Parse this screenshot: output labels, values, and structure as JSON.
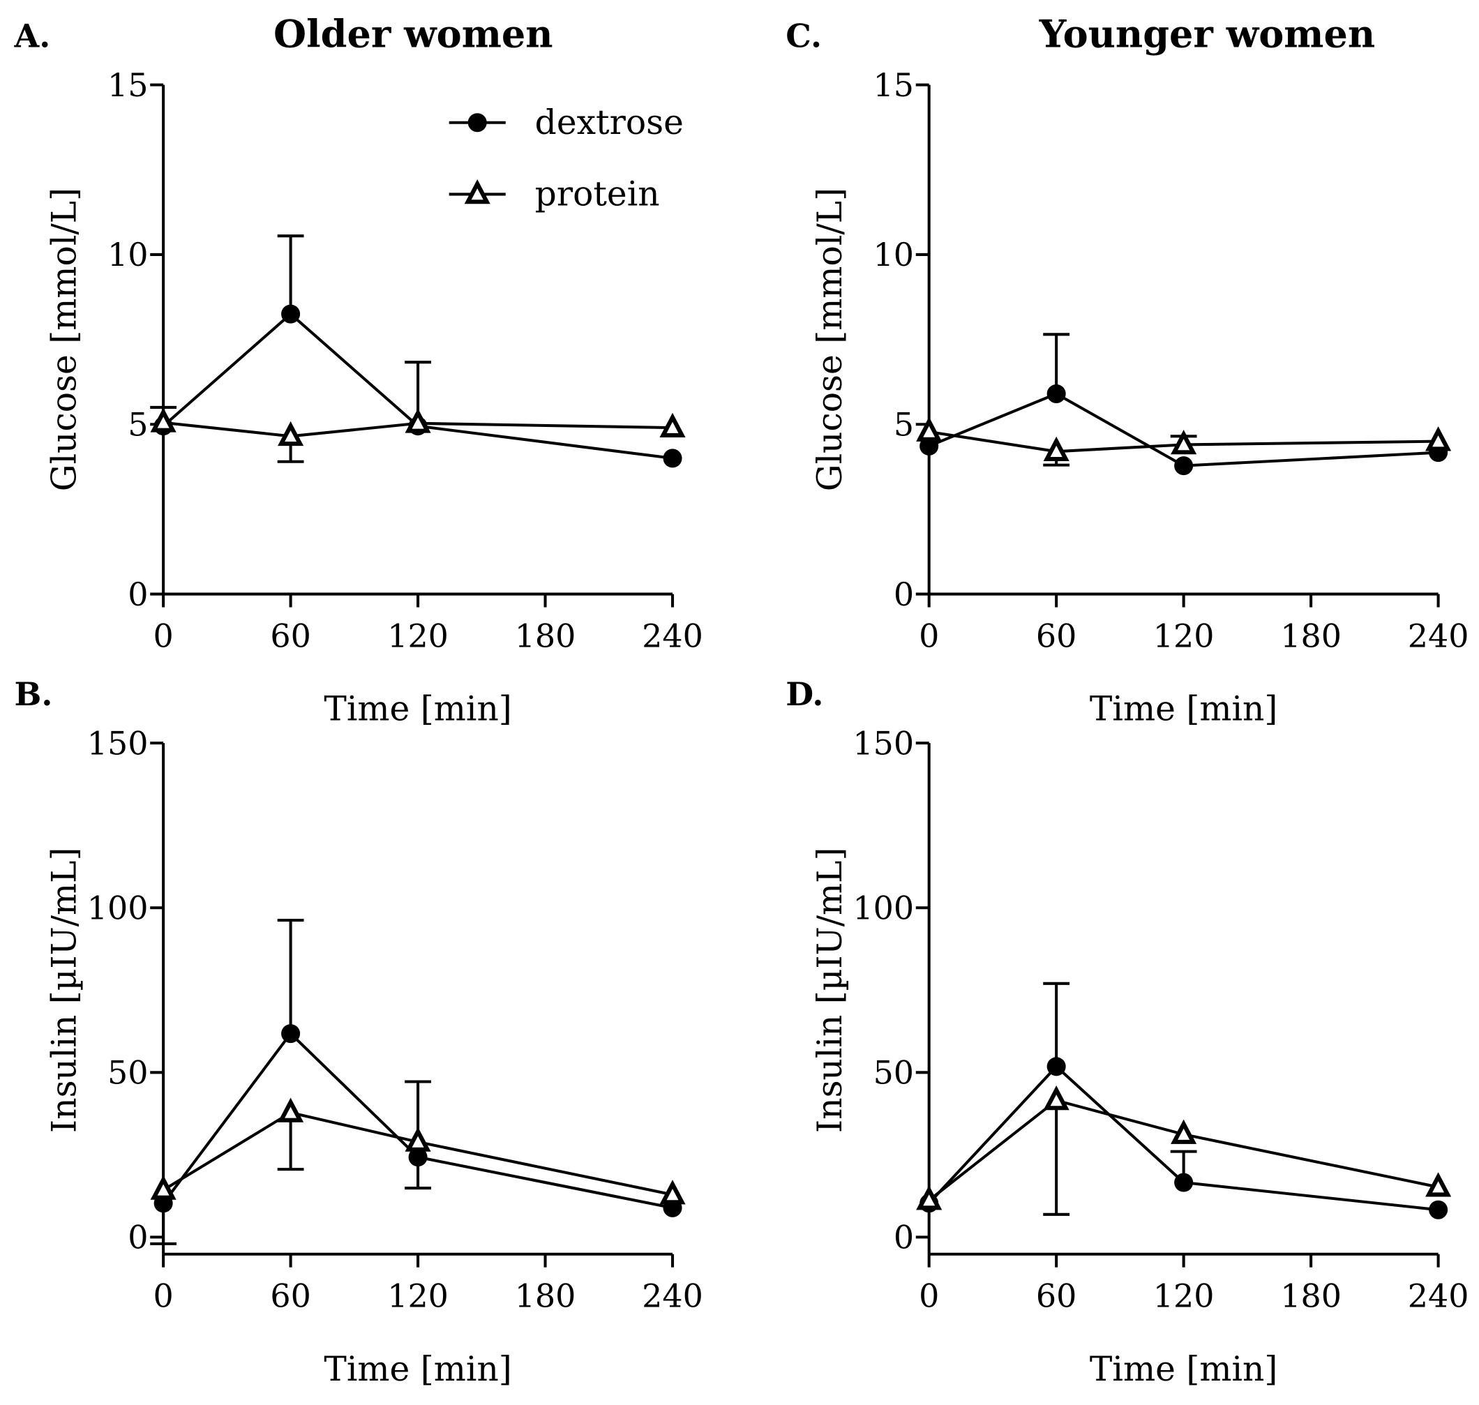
{
  "chart_data": [
    {
      "panel_label": "A.",
      "title": "Older women",
      "type": "line",
      "xlabel": "Time [min]",
      "ylabel": "Glucose [mmol/L]",
      "x": [
        0,
        60,
        120,
        240
      ],
      "xticks": [
        0,
        60,
        120,
        180,
        240
      ],
      "xlim": [
        0,
        240
      ],
      "yticks": [
        0,
        5,
        10,
        15
      ],
      "ylim": [
        0,
        15
      ],
      "legend": [
        "dextrose",
        "protein"
      ],
      "legend_position": "top-center",
      "series": [
        {
          "name": "dextrose",
          "marker": "filled-circle",
          "values": [
            4.95,
            8.25,
            4.95,
            4.0
          ],
          "err_upper": [
            5.5,
            10.55,
            6.83,
            null
          ],
          "err_lower": [
            null,
            null,
            null,
            null
          ]
        },
        {
          "name": "protein",
          "marker": "open-triangle",
          "values": [
            5.05,
            4.65,
            5.03,
            4.9
          ],
          "err_upper": [
            null,
            null,
            null,
            null
          ],
          "err_lower": [
            null,
            3.9,
            null,
            null
          ]
        }
      ]
    },
    {
      "panel_label": "B.",
      "title": "",
      "type": "line",
      "xlabel": "Time [min]",
      "ylabel": "Insulin [µIU/mL]",
      "x": [
        0,
        60,
        120,
        240
      ],
      "xticks": [
        0,
        60,
        120,
        180,
        240
      ],
      "xlim": [
        0,
        240
      ],
      "yticks": [
        0,
        50,
        100,
        150
      ],
      "ylim": [
        0,
        150
      ],
      "series": [
        {
          "name": "dextrose",
          "marker": "filled-circle",
          "values": [
            10.3,
            61.8,
            24.3,
            8.9
          ],
          "err_upper": [
            null,
            96.2,
            47.2,
            null
          ],
          "err_lower": [
            -2,
            null,
            null,
            null
          ]
        },
        {
          "name": "protein",
          "marker": "open-triangle",
          "values": [
            14.3,
            37.8,
            28.9,
            12.9
          ],
          "err_upper": [
            null,
            null,
            null,
            null
          ],
          "err_lower": [
            null,
            20.6,
            14.9,
            null
          ]
        }
      ]
    },
    {
      "panel_label": "C.",
      "title": "Younger women",
      "type": "line",
      "xlabel": "Time [min]",
      "ylabel": "Glucose [mmol/L]",
      "x": [
        0,
        60,
        120,
        240
      ],
      "xticks": [
        0,
        60,
        120,
        180,
        240
      ],
      "xlim": [
        0,
        240
      ],
      "yticks": [
        0,
        5,
        10,
        15
      ],
      "ylim": [
        0,
        15
      ],
      "series": [
        {
          "name": "dextrose",
          "marker": "filled-circle",
          "values": [
            4.36,
            5.9,
            3.78,
            4.17
          ],
          "err_upper": [
            null,
            7.65,
            null,
            null
          ],
          "err_lower": [
            null,
            null,
            null,
            null
          ]
        },
        {
          "name": "protein",
          "marker": "open-triangle",
          "values": [
            4.78,
            4.2,
            4.4,
            4.5
          ],
          "err_upper": [
            null,
            null,
            4.65,
            null
          ],
          "err_lower": [
            null,
            3.8,
            null,
            null
          ]
        }
      ]
    },
    {
      "panel_label": "D.",
      "title": "",
      "type": "line",
      "xlabel": "Time [min]",
      "ylabel": "Insulin [µIU/mL]",
      "x": [
        0,
        60,
        120,
        240
      ],
      "xticks": [
        0,
        60,
        120,
        180,
        240
      ],
      "xlim": [
        0,
        240
      ],
      "yticks": [
        0,
        50,
        100,
        150
      ],
      "ylim": [
        0,
        150
      ],
      "series": [
        {
          "name": "dextrose",
          "marker": "filled-circle",
          "values": [
            10.3,
            51.8,
            16.6,
            8.3
          ],
          "err_upper": [
            null,
            77.0,
            26.0,
            null
          ],
          "err_lower": [
            null,
            null,
            null,
            null
          ]
        },
        {
          "name": "protein",
          "marker": "open-triangle",
          "values": [
            11.2,
            41.5,
            31.2,
            15.2
          ],
          "err_upper": [
            null,
            null,
            null,
            null
          ],
          "err_lower": [
            null,
            6.9,
            null,
            null
          ]
        }
      ]
    }
  ]
}
